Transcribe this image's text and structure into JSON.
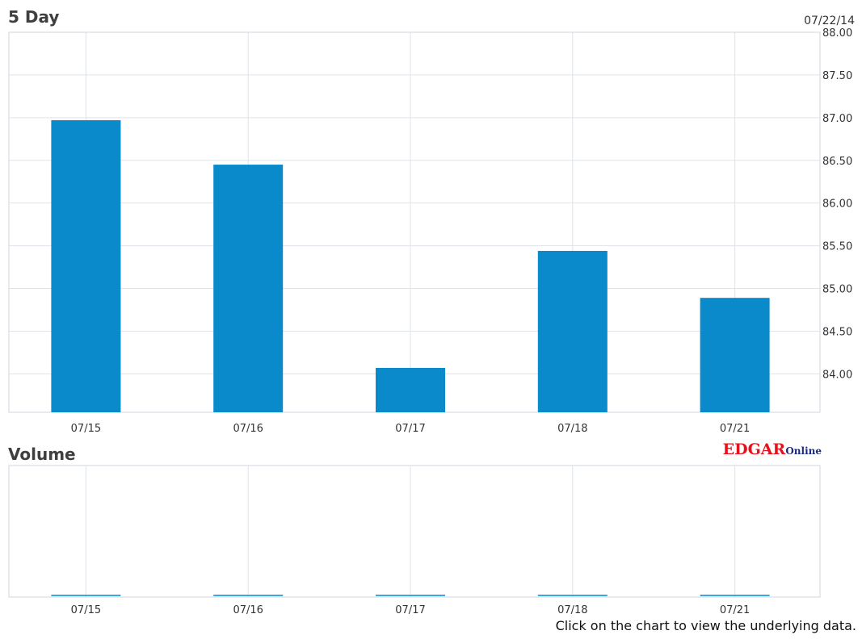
{
  "chart_data": [
    {
      "type": "bar",
      "title": "5 Day",
      "date": "07/22/14",
      "categories": [
        "07/15",
        "07/16",
        "07/17",
        "07/18",
        "07/21"
      ],
      "values": [
        86.97,
        86.45,
        84.07,
        85.44,
        84.89
      ],
      "ylim": [
        83.55,
        88.0
      ],
      "yticks": [
        "88.00",
        "87.50",
        "87.00",
        "86.50",
        "86.00",
        "85.50",
        "85.00",
        "84.50",
        "84.00"
      ],
      "ytick_values": [
        88.0,
        87.5,
        87.0,
        86.5,
        86.0,
        85.5,
        85.0,
        84.5,
        84.0
      ],
      "grid": true,
      "bar_color": "#0a8acb"
    },
    {
      "type": "bar",
      "title": "Volume",
      "categories": [
        "07/15",
        "07/16",
        "07/17",
        "07/18",
        "07/21"
      ],
      "values": [
        0,
        0,
        0,
        0,
        0
      ],
      "grid": true,
      "bar_color": "#3ba7dd"
    }
  ],
  "brand": {
    "edgar": "EDGAR",
    "online": "Online",
    "edgar_color": "#e8101b",
    "online_color": "#1b2a7c"
  },
  "footnote": "Click on the chart to view the underlying data."
}
